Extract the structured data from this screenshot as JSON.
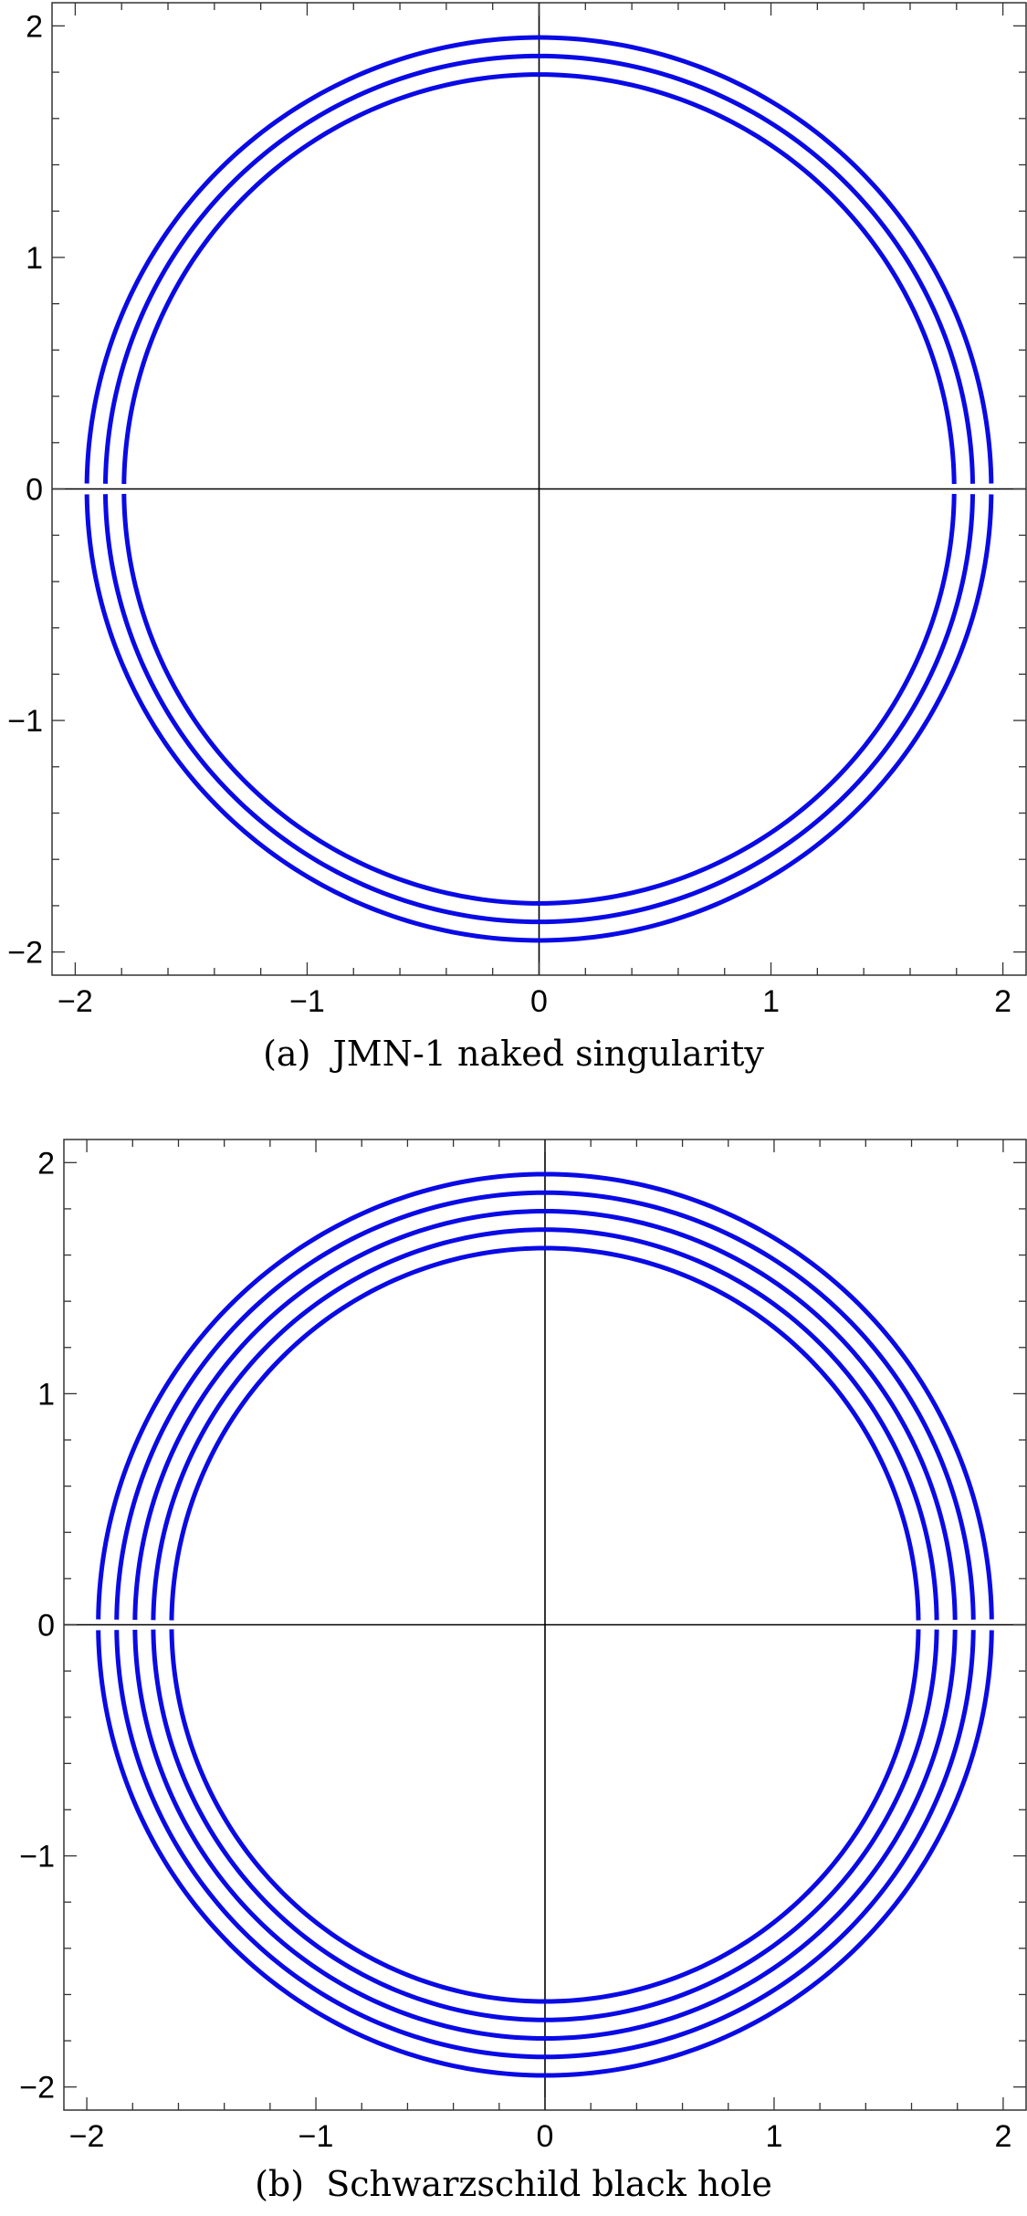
{
  "chart_data": [
    {
      "type": "line",
      "caption": "(a)  JMN-1 naked singularity",
      "xlim": [
        -2.1,
        2.1
      ],
      "ylim": [
        -2.1,
        2.1
      ],
      "xticks": [
        -2,
        -1,
        0,
        1,
        2
      ],
      "yticks": [
        -2,
        -1,
        0,
        1,
        2
      ],
      "xtick_labels": [
        "−2",
        "−1",
        "0",
        "1",
        "2"
      ],
      "ytick_labels": [
        "−2",
        "−1",
        "0",
        "1",
        "2"
      ],
      "axes_through_origin": true,
      "grid": false,
      "line_color": "#0a0ae6",
      "series": [
        {
          "shape": "circle",
          "radius": 1.95
        },
        {
          "shape": "circle",
          "radius": 1.87
        },
        {
          "shape": "circle",
          "radius": 1.79
        }
      ]
    },
    {
      "type": "line",
      "caption": "(b)  Schwarzschild black hole",
      "xlim": [
        -2.1,
        2.1
      ],
      "ylim": [
        -2.1,
        2.1
      ],
      "xticks": [
        -2,
        -1,
        0,
        1,
        2
      ],
      "yticks": [
        -2,
        -1,
        0,
        1,
        2
      ],
      "xtick_labels": [
        "−2",
        "−1",
        "0",
        "1",
        "2"
      ],
      "ytick_labels": [
        "−2",
        "−1",
        "0",
        "1",
        "2"
      ],
      "axes_through_origin": true,
      "grid": false,
      "line_color": "#0a0ae6",
      "series": [
        {
          "shape": "circle",
          "radius": 1.95
        },
        {
          "shape": "circle",
          "radius": 1.87
        },
        {
          "shape": "circle",
          "radius": 1.79
        },
        {
          "shape": "circle",
          "radius": 1.71
        },
        {
          "shape": "circle",
          "radius": 1.63
        }
      ]
    }
  ]
}
